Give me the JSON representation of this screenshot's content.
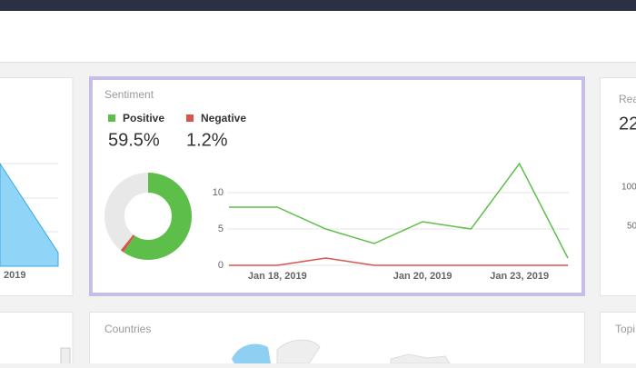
{
  "left_panel": {
    "axis_label": "2019"
  },
  "sentiment": {
    "title": "Sentiment",
    "kpis": [
      {
        "name": "Positive",
        "value": 59.5,
        "value_label": "59.5%",
        "color": "#5dbf4a"
      },
      {
        "name": "Negative",
        "value": 1.2,
        "value_label": "1.2%",
        "color": "#d9534f"
      }
    ],
    "trend": {
      "type": "line",
      "categories": [
        null,
        "Jan 18, 2019",
        null,
        null,
        "Jan 20, 2019",
        null,
        "Jan 23, 2019",
        null
      ],
      "series": [
        {
          "name": "Positive",
          "color": "#5dbf4a",
          "values": [
            8,
            8,
            5,
            3,
            6,
            5,
            14,
            1
          ]
        },
        {
          "name": "Negative",
          "color": "#d9534f",
          "values": [
            0,
            0,
            1,
            0,
            0,
            0,
            0,
            0
          ]
        }
      ],
      "ylim": [
        0,
        14
      ],
      "yticks": [
        0,
        5,
        10
      ],
      "grid": true
    }
  },
  "right_panel": {
    "title": "Rea",
    "value": "22",
    "ticks": [
      "100",
      "50"
    ]
  },
  "countries": {
    "title": "Countries"
  },
  "topics": {
    "title": "Topi"
  }
}
